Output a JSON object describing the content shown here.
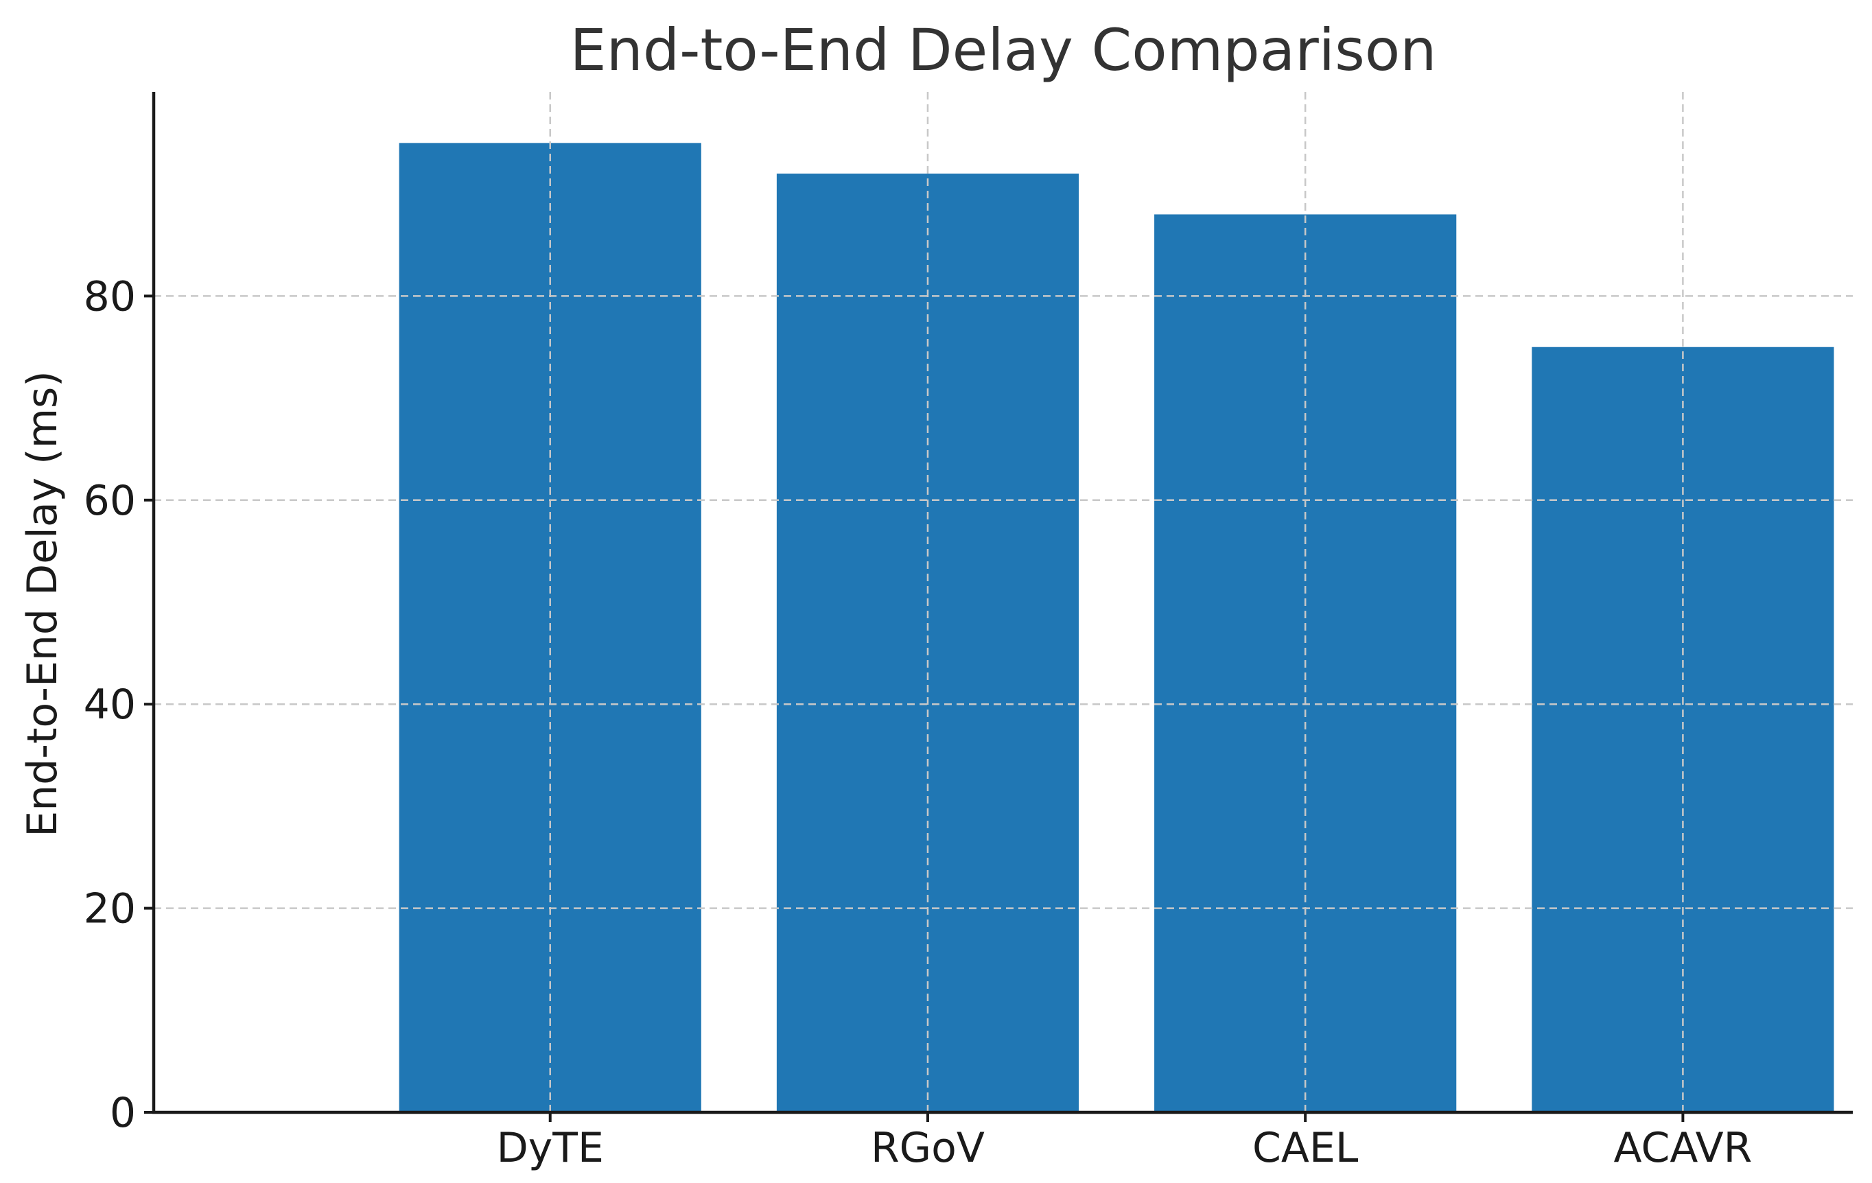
{
  "chart_data": {
    "type": "bar",
    "title": "End-to-End Delay Comparison",
    "xlabel": "",
    "ylabel": "End-to-End Delay (ms)",
    "categories": [
      "DyTE",
      "RGoV",
      "CAEL",
      "ACAVR"
    ],
    "values": [
      95,
      92,
      88,
      75
    ],
    "ylim": [
      0,
      100
    ],
    "yticks": [
      0,
      20,
      40,
      60,
      80
    ],
    "grid": true,
    "legend": "none",
    "bar_color": "#2077b4"
  }
}
